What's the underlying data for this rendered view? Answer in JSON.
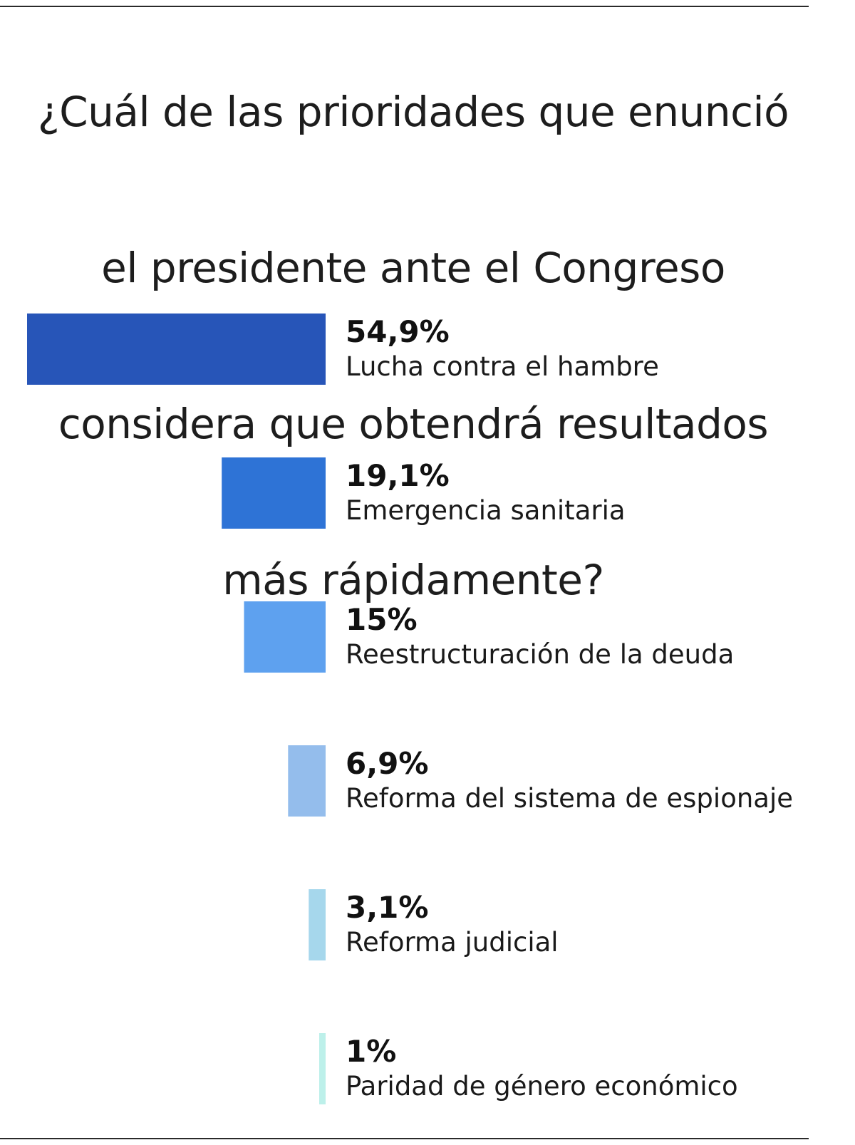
{
  "chart_data": {
    "type": "bar",
    "orientation": "horizontal",
    "title": "¿Cuál de las prioridades que enunció el presidente ante el Congreso considera que obtendrá resultados más rápidamente?",
    "title_lines": [
      "¿Cuál de las prioridades que enunció",
      "el presidente ante el Congreso",
      "considera que obtendrá resultados",
      "más rápidamente?"
    ],
    "categories": [
      "Lucha contra el hambre",
      "Emergencia sanitaria",
      "Reestructuración de la deuda",
      "Reforma del sistema de espionaje",
      "Reforma judicial",
      "Paridad de género económico"
    ],
    "values": [
      54.9,
      19.1,
      15,
      6.9,
      3.1,
      1
    ],
    "value_labels": [
      "54,9%",
      "19,1%",
      "15%",
      "6,9%",
      "3,1%",
      "1%"
    ],
    "colors": [
      "#2755b8",
      "#2e73d6",
      "#5ea1ef",
      "#94bdec",
      "#a6d7ec",
      "#bdf0ea"
    ],
    "xlabel": "",
    "ylabel": "",
    "xlim": [
      0,
      54.9
    ],
    "bar_alignment": "right",
    "grid": false,
    "legend": "none"
  }
}
